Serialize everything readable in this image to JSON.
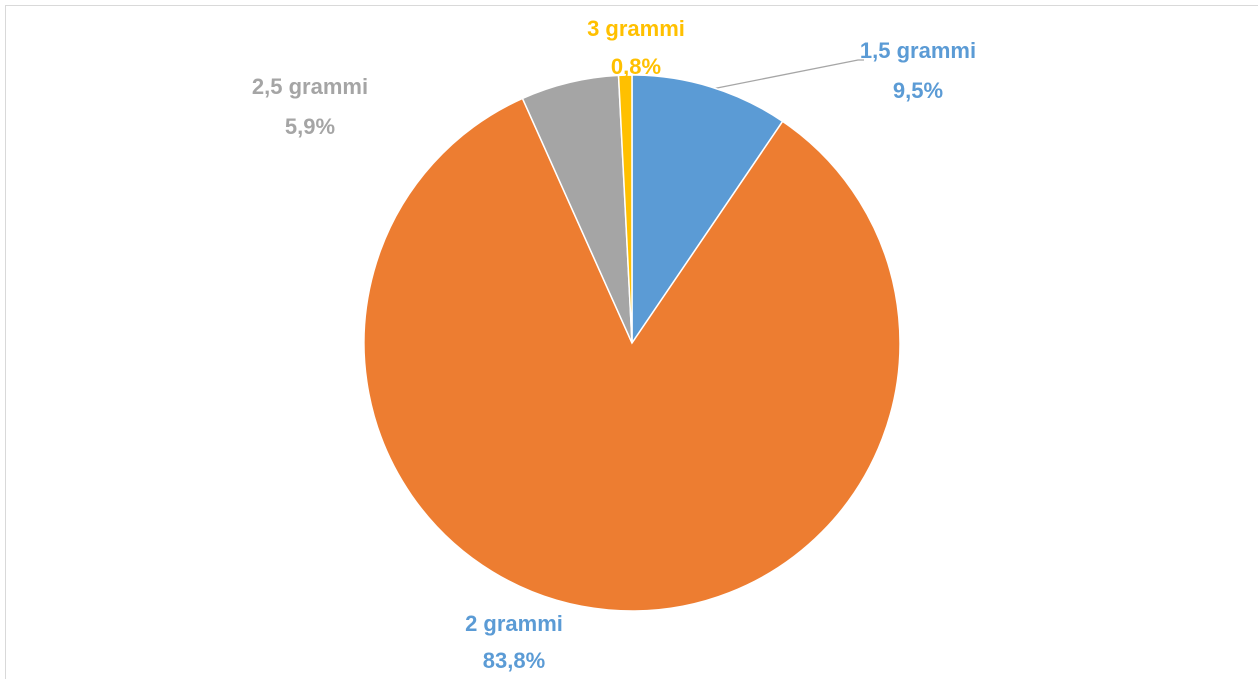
{
  "chart_data": {
    "type": "pie",
    "categories": [
      "1,5 grammi",
      "2 grammi",
      "2,5 grammi",
      "3 grammi"
    ],
    "values": [
      9.5,
      83.8,
      5.9,
      0.8
    ],
    "value_labels": [
      "9,5%",
      "83,8%",
      "5,9%",
      "0,8%"
    ],
    "colors": [
      "#5b9bd5",
      "#ed7d31",
      "#a5a5a5",
      "#ffc000"
    ]
  }
}
